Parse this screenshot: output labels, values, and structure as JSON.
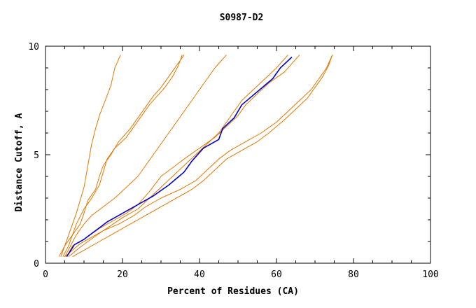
{
  "chart_data": {
    "type": "line",
    "title": "S0987-D2",
    "xlabel": "Percent of Residues (CA)",
    "ylabel": "Distance Cutoff, A",
    "xlim": [
      0,
      100
    ],
    "ylim": [
      0,
      10
    ],
    "xticks": [
      0,
      20,
      40,
      60,
      80,
      100
    ],
    "yticks": [
      0,
      5,
      10
    ],
    "grid": false,
    "colors": {
      "background_series": "#e07800",
      "highlight_series": "#0000cc"
    },
    "series": [
      {
        "highlight": true,
        "points": [
          [
            5.5,
            0.3
          ],
          [
            7.5,
            0.85
          ],
          [
            10,
            1.1
          ],
          [
            13,
            1.5
          ],
          [
            16,
            1.9
          ],
          [
            20,
            2.3
          ],
          [
            24,
            2.7
          ],
          [
            28,
            3.1
          ],
          [
            32,
            3.6
          ],
          [
            36,
            4.2
          ],
          [
            38,
            4.7
          ],
          [
            41,
            5.3
          ],
          [
            45,
            5.7
          ],
          [
            46,
            6.2
          ],
          [
            49,
            6.7
          ],
          [
            51,
            7.3
          ],
          [
            55,
            7.9
          ],
          [
            59,
            8.5
          ],
          [
            61,
            9.0
          ],
          [
            64,
            9.5
          ]
        ]
      },
      {
        "points": [
          [
            4,
            0.3
          ],
          [
            5,
            0.8
          ],
          [
            6,
            1.3
          ],
          [
            7,
            1.8
          ],
          [
            8,
            2.3
          ],
          [
            9,
            2.9
          ],
          [
            10,
            3.5
          ],
          [
            10.5,
            4.0
          ],
          [
            11,
            4.5
          ],
          [
            11.5,
            5.0
          ],
          [
            12,
            5.5
          ],
          [
            13,
            6.2
          ],
          [
            14,
            6.8
          ],
          [
            15.5,
            7.5
          ],
          [
            17,
            8.2
          ],
          [
            18,
            9.0
          ],
          [
            19.5,
            9.6
          ]
        ]
      },
      {
        "points": [
          [
            4.5,
            0.3
          ],
          [
            6,
            0.8
          ],
          [
            7,
            1.3
          ],
          [
            8,
            1.8
          ],
          [
            10,
            2.5
          ],
          [
            12,
            3.0
          ],
          [
            14,
            3.6
          ],
          [
            15,
            4.2
          ],
          [
            16,
            4.8
          ],
          [
            18,
            5.3
          ],
          [
            21,
            5.8
          ],
          [
            23,
            6.3
          ],
          [
            25,
            6.8
          ],
          [
            27,
            7.3
          ],
          [
            29,
            7.7
          ],
          [
            31,
            8.1
          ],
          [
            33,
            8.6
          ],
          [
            34.5,
            9.1
          ],
          [
            35.5,
            9.6
          ]
        ]
      },
      {
        "points": [
          [
            3.5,
            0.3
          ],
          [
            5,
            0.8
          ],
          [
            7,
            1.3
          ],
          [
            9,
            1.8
          ],
          [
            10,
            2.3
          ],
          [
            11,
            2.9
          ],
          [
            13,
            3.4
          ],
          [
            14,
            4.0
          ],
          [
            15,
            4.5
          ],
          [
            17,
            5.0
          ],
          [
            19,
            5.6
          ],
          [
            22,
            6.2
          ],
          [
            24,
            6.7
          ],
          [
            26,
            7.2
          ],
          [
            28,
            7.7
          ],
          [
            30,
            8.1
          ],
          [
            32,
            8.6
          ],
          [
            34,
            9.1
          ],
          [
            36,
            9.6
          ]
        ]
      },
      {
        "points": [
          [
            5,
            0.3
          ],
          [
            6.5,
            0.8
          ],
          [
            8,
            1.3
          ],
          [
            10,
            1.8
          ],
          [
            12,
            2.2
          ],
          [
            15,
            2.6
          ],
          [
            18,
            3.0
          ],
          [
            21,
            3.5
          ],
          [
            24,
            4.0
          ],
          [
            26,
            4.5
          ],
          [
            28,
            5.0
          ],
          [
            30,
            5.5
          ],
          [
            32,
            6.0
          ],
          [
            34,
            6.5
          ],
          [
            36,
            7.0
          ],
          [
            38,
            7.5
          ],
          [
            40,
            8.0
          ],
          [
            42,
            8.5
          ],
          [
            44,
            9.0
          ],
          [
            47,
            9.6
          ]
        ]
      },
      {
        "points": [
          [
            5,
            0.3
          ],
          [
            7,
            0.6
          ],
          [
            9,
            0.9
          ],
          [
            12,
            1.2
          ],
          [
            15,
            1.5
          ],
          [
            19,
            1.8
          ],
          [
            23,
            2.2
          ],
          [
            26,
            2.6
          ],
          [
            30,
            3.0
          ],
          [
            35,
            3.4
          ],
          [
            39,
            3.8
          ],
          [
            42,
            4.3
          ],
          [
            45,
            4.8
          ],
          [
            48,
            5.2
          ],
          [
            52,
            5.6
          ],
          [
            56,
            6.0
          ],
          [
            60,
            6.5
          ],
          [
            63,
            7.0
          ],
          [
            66,
            7.5
          ],
          [
            69,
            8.0
          ],
          [
            71,
            8.5
          ],
          [
            73,
            9.0
          ],
          [
            74.5,
            9.6
          ]
        ]
      },
      {
        "points": [
          [
            6,
            0.3
          ],
          [
            8,
            0.6
          ],
          [
            11,
            1.0
          ],
          [
            15,
            1.5
          ],
          [
            20,
            2.1
          ],
          [
            24,
            2.5
          ],
          [
            27,
            3.0
          ],
          [
            30,
            3.5
          ],
          [
            33,
            4.0
          ],
          [
            36,
            4.5
          ],
          [
            39,
            5.0
          ],
          [
            42,
            5.5
          ],
          [
            45,
            6.0
          ],
          [
            47,
            6.5
          ],
          [
            49,
            7.0
          ],
          [
            51,
            7.5
          ],
          [
            54,
            8.0
          ],
          [
            57,
            8.5
          ],
          [
            60,
            9.0
          ],
          [
            63,
            9.6
          ]
        ]
      },
      {
        "points": [
          [
            7,
            0.3
          ],
          [
            10,
            0.6
          ],
          [
            14,
            1.0
          ],
          [
            18,
            1.4
          ],
          [
            23,
            1.9
          ],
          [
            28,
            2.4
          ],
          [
            33,
            2.9
          ],
          [
            38,
            3.4
          ],
          [
            41,
            3.8
          ],
          [
            44,
            4.3
          ],
          [
            47,
            4.8
          ],
          [
            51,
            5.2
          ],
          [
            55,
            5.6
          ],
          [
            58,
            6.0
          ],
          [
            62,
            6.6
          ],
          [
            65,
            7.1
          ],
          [
            68,
            7.6
          ],
          [
            70,
            8.1
          ],
          [
            72,
            8.6
          ],
          [
            73.5,
            9.1
          ],
          [
            74.5,
            9.6
          ]
        ]
      },
      {
        "points": [
          [
            5.5,
            0.3
          ],
          [
            7,
            0.8
          ],
          [
            10,
            1.1
          ],
          [
            14,
            1.6
          ],
          [
            18,
            2.0
          ],
          [
            21,
            2.3
          ],
          [
            24,
            2.7
          ],
          [
            27,
            3.3
          ],
          [
            30,
            4.0
          ],
          [
            33,
            4.4
          ],
          [
            36,
            4.8
          ],
          [
            40,
            5.3
          ],
          [
            44,
            5.8
          ],
          [
            47,
            6.3
          ],
          [
            50,
            6.8
          ],
          [
            52,
            7.3
          ],
          [
            55,
            7.8
          ],
          [
            58,
            8.3
          ],
          [
            62,
            8.8
          ],
          [
            64,
            9.2
          ],
          [
            66,
            9.6
          ]
        ]
      }
    ]
  }
}
